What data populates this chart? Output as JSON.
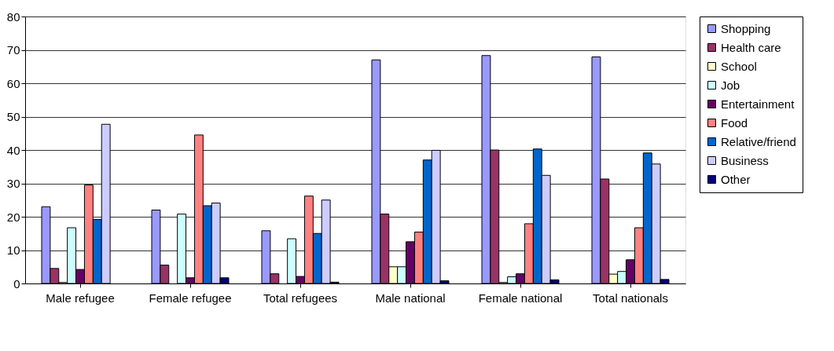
{
  "chart_data": {
    "type": "bar",
    "categories": [
      "Male refugee",
      "Female refugee",
      "Total refugees",
      "Male national",
      "Female national",
      "Total nationals"
    ],
    "series": [
      {
        "name": "Shopping",
        "color": "#9999ff",
        "values": [
          23,
          22,
          15.8,
          67,
          68.3,
          67.9
        ]
      },
      {
        "name": "Health care",
        "color": "#993366",
        "values": [
          4.5,
          5.5,
          2.9,
          20.8,
          40,
          31.3
        ]
      },
      {
        "name": "School",
        "color": "#ffffcc",
        "values": [
          0.3,
          null,
          null,
          5,
          0.3,
          2.8
        ]
      },
      {
        "name": "Job",
        "color": "#ccffff",
        "values": [
          16.7,
          20.8,
          13.4,
          5,
          2,
          3.6
        ]
      },
      {
        "name": "Entertainment",
        "color": "#660066",
        "values": [
          4.2,
          1.7,
          2.1,
          12.5,
          2.9,
          7.1
        ]
      },
      {
        "name": "Food",
        "color": "#ff8080",
        "values": [
          29.5,
          44.5,
          26.2,
          15.4,
          17.9,
          16.7
        ]
      },
      {
        "name": "Relative/friend",
        "color": "#0066cc",
        "values": [
          19.2,
          23.3,
          15,
          37,
          40.3,
          39.1
        ]
      },
      {
        "name": "Business",
        "color": "#ccccff",
        "values": [
          47.7,
          24.1,
          25,
          39.9,
          32.4,
          35.8
        ]
      },
      {
        "name": "Other",
        "color": "#000080",
        "values": [
          null,
          1.7,
          0.4,
          0.8,
          1.1,
          1.2
        ]
      }
    ],
    "ylim": [
      0,
      80
    ],
    "yticks": [
      0,
      10,
      20,
      30,
      40,
      50,
      60,
      70,
      80
    ],
    "grid": "y",
    "legend": "right"
  }
}
